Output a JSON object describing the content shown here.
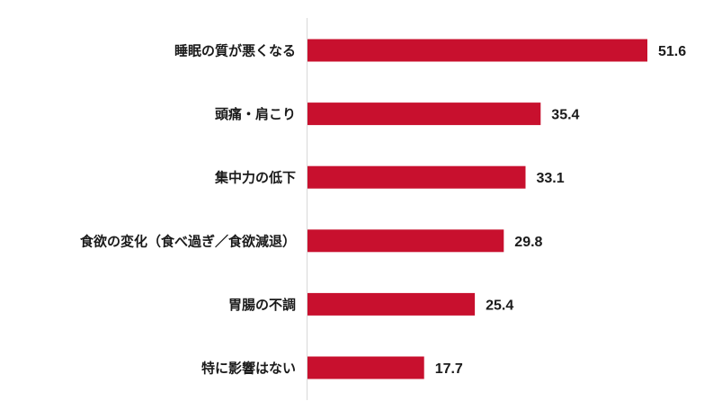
{
  "chart_data": {
    "type": "bar",
    "orientation": "horizontal",
    "title": "",
    "xlabel": "",
    "ylabel": "",
    "categories": [
      "睡眠の質が悪くなる",
      "頭痛・肩こり",
      "集中力の低下",
      "食欲の変化（食べ過ぎ／食欲減退）",
      "胃腸の不調",
      "特に影響はない"
    ],
    "values": [
      51.6,
      35.4,
      33.1,
      29.8,
      25.4,
      17.7
    ],
    "value_labels": [
      "51.6",
      "35.4",
      "33.1",
      "29.8",
      "25.4",
      "17.7"
    ],
    "xlim": [
      0,
      60
    ],
    "bar_color": "#c8102e",
    "grid": false,
    "legend": "none"
  }
}
